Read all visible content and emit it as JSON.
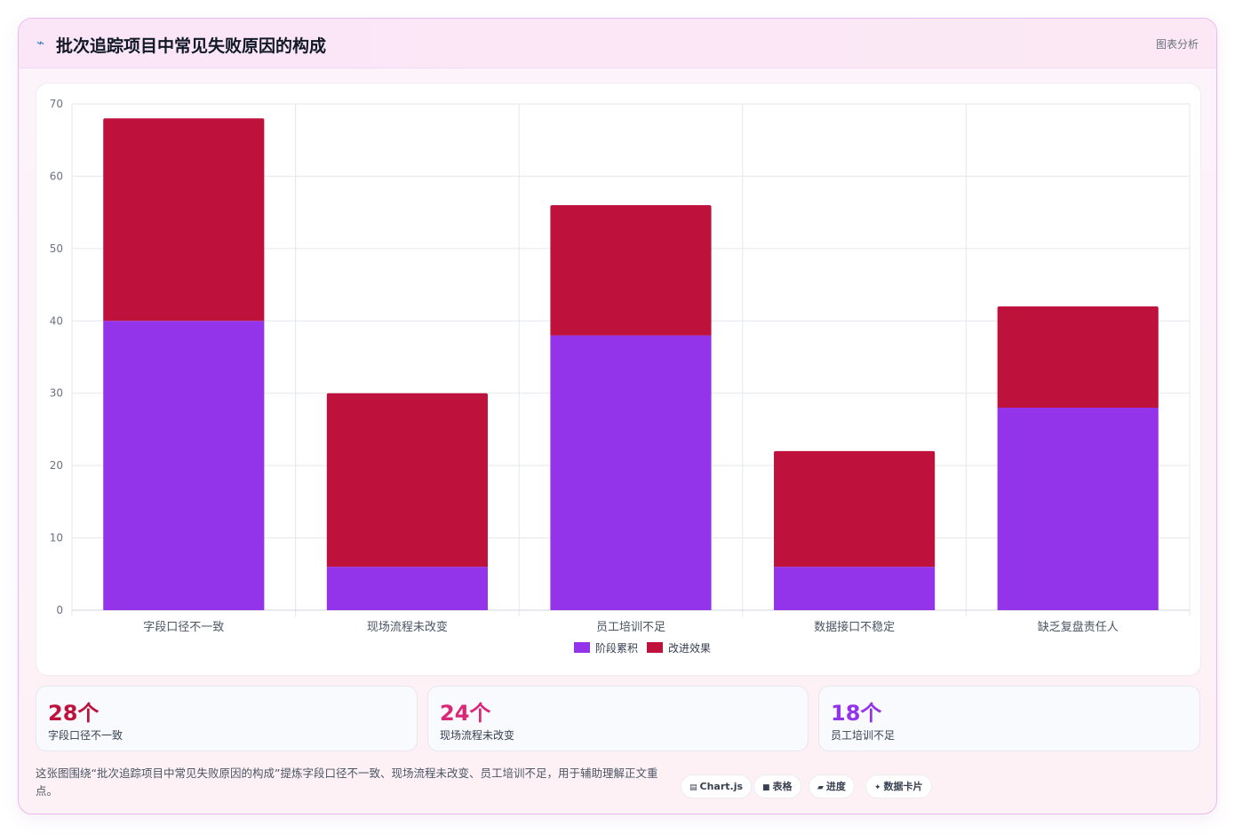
{
  "header": {
    "icon": "chart-line-icon",
    "title": "批次追踪项目中常见失败原因的构成",
    "tag": "图表分析"
  },
  "chart_data": {
    "type": "bar",
    "stacked": true,
    "title": "",
    "xlabel": "",
    "ylabel": "",
    "categories": [
      "字段口径不一致",
      "现场流程未改变",
      "员工培训不足",
      "数据接口不稳定",
      "缺乏复盘责任人"
    ],
    "series": [
      {
        "name": "阶段累积",
        "color": "#9333ea",
        "values": [
          40,
          6,
          38,
          6,
          28
        ]
      },
      {
        "name": "改进效果",
        "color": "#be123c",
        "values": [
          28,
          24,
          18,
          16,
          14
        ]
      }
    ],
    "ylim": [
      0,
      70
    ],
    "yticks": [
      0,
      10,
      20,
      30,
      40,
      50,
      60,
      70
    ],
    "grid": true,
    "legend_position": "bottom"
  },
  "stats": [
    {
      "value": "28个",
      "label": "字段口径不一致",
      "color": "#be123c"
    },
    {
      "value": "24个",
      "label": "现场流程未改变",
      "color": "#db2777"
    },
    {
      "value": "18个",
      "label": "员工培训不足",
      "color": "#9333ea"
    }
  ],
  "footnote": "这张图围绕“批次追踪项目中常见失败原因的构成”提炼字段口径不一致、现场流程未改变、员工培训不足，用于辅助理解正文重点。",
  "chips": [
    {
      "icon": "chart-icon",
      "glyph": "▤",
      "label": "Chart.js"
    },
    {
      "icon": "table-icon",
      "glyph": "■",
      "label": "表格"
    },
    {
      "icon": "progress-icon",
      "glyph": "▰",
      "label": "进度"
    },
    {
      "icon": "card-icon",
      "glyph": "✦",
      "label": "数据卡片"
    }
  ]
}
